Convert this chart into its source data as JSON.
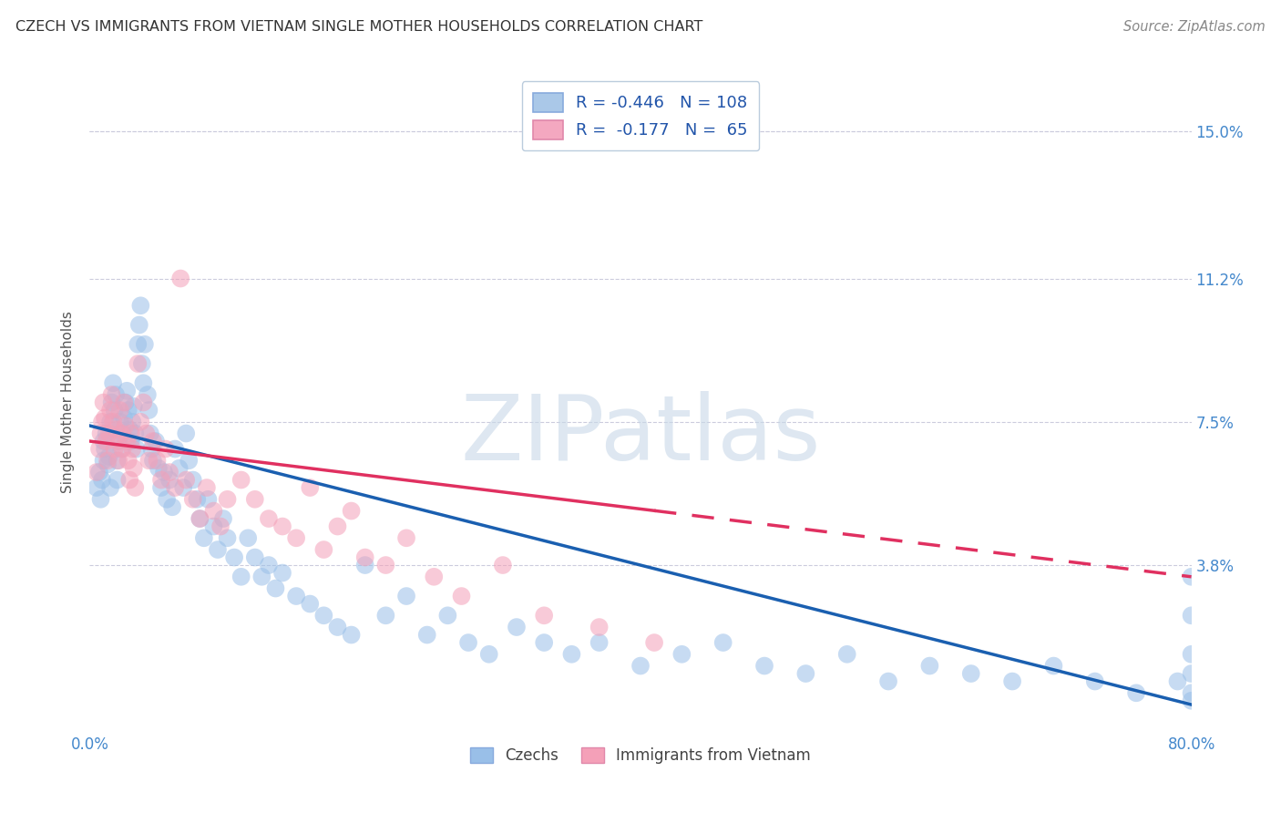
{
  "title": "CZECH VS IMMIGRANTS FROM VIETNAM SINGLE MOTHER HOUSEHOLDS CORRELATION CHART",
  "source": "Source: ZipAtlas.com",
  "ylabel": "Single Mother Households",
  "ytick_labels": [
    "15.0%",
    "11.2%",
    "7.5%",
    "3.8%"
  ],
  "ytick_values": [
    0.15,
    0.112,
    0.075,
    0.038
  ],
  "xlim": [
    0.0,
    0.8
  ],
  "ylim": [
    -0.005,
    0.165
  ],
  "legend_label1": "R = -0.446   N = 108",
  "legend_label2": "R =  -0.177   N =  65",
  "legend_color1": "#aac8e8",
  "legend_color2": "#f4a8c0",
  "scatter_color_czech": "#99bfe8",
  "scatter_color_vietnam": "#f4a0b8",
  "trend_color_czech": "#1a5fb0",
  "trend_color_vietnam": "#e03060",
  "watermark": "ZIPatlas",
  "watermark_color": "#c8d8e8",
  "bottom_legend1": "Czechs",
  "bottom_legend2": "Immigrants from Vietnam",
  "czechs_x": [
    0.005,
    0.007,
    0.008,
    0.009,
    0.01,
    0.01,
    0.011,
    0.012,
    0.013,
    0.014,
    0.015,
    0.015,
    0.016,
    0.017,
    0.018,
    0.019,
    0.02,
    0.02,
    0.021,
    0.022,
    0.023,
    0.024,
    0.025,
    0.026,
    0.027,
    0.028,
    0.029,
    0.03,
    0.031,
    0.032,
    0.033,
    0.034,
    0.035,
    0.036,
    0.037,
    0.038,
    0.039,
    0.04,
    0.042,
    0.043,
    0.044,
    0.045,
    0.046,
    0.048,
    0.05,
    0.052,
    0.054,
    0.056,
    0.058,
    0.06,
    0.062,
    0.065,
    0.068,
    0.07,
    0.072,
    0.075,
    0.078,
    0.08,
    0.083,
    0.086,
    0.09,
    0.093,
    0.097,
    0.1,
    0.105,
    0.11,
    0.115,
    0.12,
    0.125,
    0.13,
    0.135,
    0.14,
    0.15,
    0.16,
    0.17,
    0.18,
    0.19,
    0.2,
    0.215,
    0.23,
    0.245,
    0.26,
    0.275,
    0.29,
    0.31,
    0.33,
    0.35,
    0.37,
    0.4,
    0.43,
    0.46,
    0.49,
    0.52,
    0.55,
    0.58,
    0.61,
    0.64,
    0.67,
    0.7,
    0.73,
    0.76,
    0.79,
    0.8,
    0.8,
    0.8,
    0.8,
    0.8,
    0.8
  ],
  "czechs_y": [
    0.058,
    0.062,
    0.055,
    0.06,
    0.065,
    0.07,
    0.068,
    0.072,
    0.064,
    0.066,
    0.058,
    0.075,
    0.08,
    0.085,
    0.078,
    0.082,
    0.06,
    0.065,
    0.07,
    0.075,
    0.068,
    0.072,
    0.076,
    0.08,
    0.083,
    0.078,
    0.073,
    0.07,
    0.075,
    0.079,
    0.072,
    0.068,
    0.095,
    0.1,
    0.105,
    0.09,
    0.085,
    0.095,
    0.082,
    0.078,
    0.072,
    0.068,
    0.065,
    0.07,
    0.063,
    0.058,
    0.062,
    0.055,
    0.06,
    0.053,
    0.068,
    0.063,
    0.058,
    0.072,
    0.065,
    0.06,
    0.055,
    0.05,
    0.045,
    0.055,
    0.048,
    0.042,
    0.05,
    0.045,
    0.04,
    0.035,
    0.045,
    0.04,
    0.035,
    0.038,
    0.032,
    0.036,
    0.03,
    0.028,
    0.025,
    0.022,
    0.02,
    0.038,
    0.025,
    0.03,
    0.02,
    0.025,
    0.018,
    0.015,
    0.022,
    0.018,
    0.015,
    0.018,
    0.012,
    0.015,
    0.018,
    0.012,
    0.01,
    0.015,
    0.008,
    0.012,
    0.01,
    0.008,
    0.012,
    0.008,
    0.005,
    0.008,
    0.035,
    0.025,
    0.015,
    0.01,
    0.005,
    0.003
  ],
  "vietnam_x": [
    0.005,
    0.007,
    0.008,
    0.009,
    0.01,
    0.011,
    0.012,
    0.013,
    0.014,
    0.015,
    0.016,
    0.017,
    0.018,
    0.019,
    0.02,
    0.021,
    0.022,
    0.023,
    0.024,
    0.025,
    0.026,
    0.027,
    0.028,
    0.029,
    0.03,
    0.031,
    0.032,
    0.033,
    0.035,
    0.037,
    0.039,
    0.041,
    0.043,
    0.046,
    0.049,
    0.052,
    0.055,
    0.058,
    0.062,
    0.066,
    0.07,
    0.075,
    0.08,
    0.085,
    0.09,
    0.095,
    0.1,
    0.11,
    0.12,
    0.13,
    0.14,
    0.15,
    0.16,
    0.17,
    0.18,
    0.19,
    0.2,
    0.215,
    0.23,
    0.25,
    0.27,
    0.3,
    0.33,
    0.37,
    0.41
  ],
  "vietnam_y": [
    0.062,
    0.068,
    0.072,
    0.075,
    0.08,
    0.076,
    0.07,
    0.065,
    0.072,
    0.078,
    0.082,
    0.075,
    0.068,
    0.073,
    0.07,
    0.065,
    0.078,
    0.072,
    0.068,
    0.08,
    0.074,
    0.07,
    0.065,
    0.06,
    0.072,
    0.068,
    0.063,
    0.058,
    0.09,
    0.075,
    0.08,
    0.072,
    0.065,
    0.07,
    0.065,
    0.06,
    0.068,
    0.062,
    0.058,
    0.112,
    0.06,
    0.055,
    0.05,
    0.058,
    0.052,
    0.048,
    0.055,
    0.06,
    0.055,
    0.05,
    0.048,
    0.045,
    0.058,
    0.042,
    0.048,
    0.052,
    0.04,
    0.038,
    0.045,
    0.035,
    0.03,
    0.038,
    0.025,
    0.022,
    0.018
  ],
  "trend_czech_x0": 0.0,
  "trend_czech_y0": 0.074,
  "trend_czech_x1": 0.8,
  "trend_czech_y1": 0.002,
  "trend_viet_x0": 0.0,
  "trend_viet_y0": 0.07,
  "trend_viet_x1": 0.8,
  "trend_viet_y1": 0.035,
  "trend_viet_solid_end": 0.41
}
